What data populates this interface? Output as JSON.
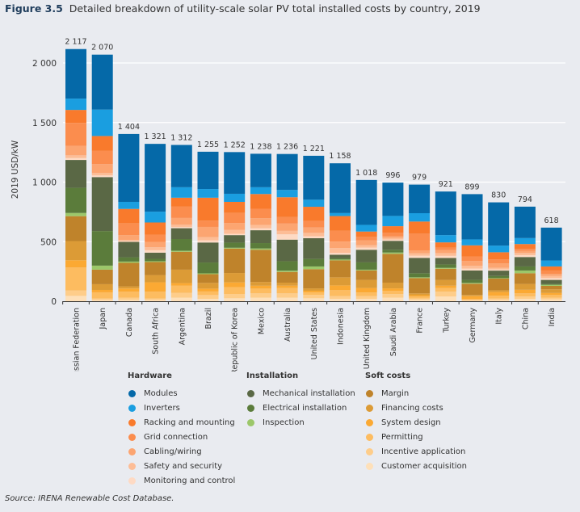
{
  "title": {
    "figure": "Figure 3.5",
    "text": "Detailed breakdown of utility-scale solar PV total installed costs by country, 2019"
  },
  "source": "Source: IRENA Renewable Cost Database.",
  "chart_data": {
    "type": "bar",
    "stacked": true,
    "title": "Detailed breakdown of utility-scale solar PV total installed costs by country, 2019",
    "ylabel": "2019 USD/kW",
    "xlabel": "",
    "ylim": [
      0,
      2200
    ],
    "yticks": [
      0,
      500,
      1000,
      1500,
      2000
    ],
    "ytick_labels": [
      "0",
      "500",
      "1 000",
      "1 500",
      "2 000"
    ],
    "grid": true,
    "legend_position": "bottom",
    "categories": [
      "Russian Federation",
      "Japan",
      "Canada",
      "South Africa",
      "Argentina",
      "Brazil",
      "Republic of Korea",
      "Mexico",
      "Australia",
      "United States",
      "Indonesia",
      "United Kingdom",
      "Saudi Arabia",
      "France",
      "Turkey",
      "Germany",
      "Italy",
      "China",
      "India"
    ],
    "totals": [
      2117,
      2070,
      1404,
      1321,
      1312,
      1255,
      1252,
      1238,
      1236,
      1221,
      1158,
      1018,
      996,
      979,
      921,
      899,
      830,
      794,
      618
    ],
    "total_labels": [
      "2 117",
      "2 070",
      "1 404",
      "1 321",
      "1 312",
      "1 255",
      "1 252",
      "1 238",
      "1 236",
      "1 221",
      "1 158",
      "1 018",
      "996",
      "979",
      "921",
      "899",
      "830",
      "794",
      "618"
    ],
    "groups": [
      {
        "name": "Hardware",
        "series": [
          {
            "name": "Modules",
            "color": "#0569a8",
            "values": [
              416,
              461,
              570,
              569,
              355,
              313,
              350,
              281,
              302,
              369,
              418,
              377,
              280,
              240,
              366,
              380,
              363,
              264,
              276
            ]
          },
          {
            "name": "Inverters",
            "color": "#1a9ee0",
            "values": [
              95,
              222,
              59,
              91,
              88,
              73,
              68,
              57,
              61,
              59,
              25,
              56,
              86,
              70,
              61,
              50,
              56,
              50,
              50
            ]
          },
          {
            "name": "Racking and mounting",
            "color": "#f97a2c",
            "values": [
              109,
              125,
              120,
              102,
              75,
              193,
              93,
              124,
              165,
              118,
              124,
              45,
              56,
              102,
              45,
              93,
              59,
              41,
              34
            ]
          },
          {
            "name": "Grid connection",
            "color": "#fb8d4e",
            "values": [
              193,
              111,
              100,
              61,
              95,
              52,
              84,
              79,
              56,
              56,
              90,
              30,
              29,
              140,
              20,
              39,
              34,
              17,
              29
            ]
          },
          {
            "name": "Cabling/wiring",
            "color": "#fca571",
            "values": [
              79,
              75,
              41,
              45,
              57,
              86,
              57,
              56,
              61,
              45,
              54,
              40,
              14,
              25,
              25,
              40,
              38,
              17,
              17
            ]
          },
          {
            "name": "Safety and security",
            "color": "#fdbd96",
            "values": [
              23,
              20,
              10,
              25,
              18,
              27,
              34,
              29,
              29,
              29,
              41,
              20,
              13,
              20,
              23,
              23,
              13,
              18,
              17
            ]
          },
          {
            "name": "Monitoring and control",
            "color": "#fedac4",
            "values": [
              16,
              14,
              6,
              20,
              11,
              18,
              11,
              16,
              45,
              16,
              16,
              18,
              11,
              18,
              18,
              16,
              10,
              16,
              16
            ]
          }
        ]
      },
      {
        "name": "Installation",
        "series": [
          {
            "name": "Mechanical installation",
            "color": "#5a6845",
            "values": [
              234,
              453,
              129,
              52,
              91,
              168,
              63,
              108,
              181,
              174,
              30,
              106,
              75,
              129,
              54,
              79,
              45,
              79,
              34
            ]
          },
          {
            "name": "Electrical installation",
            "color": "#5b7c3b",
            "values": [
              211,
              290,
              36,
              20,
              98,
              91,
              43,
              45,
              79,
              63,
              10,
              61,
              23,
              34,
              29,
              25,
              18,
              34,
              7
            ]
          },
          {
            "name": "Inspection",
            "color": "#9cc76a",
            "values": [
              27,
              34,
              11,
              7,
              9,
              7,
              7,
              11,
              11,
              23,
              7,
              7,
              11,
              7,
              7,
              7,
              4,
              23,
              9
            ]
          }
        ]
      },
      {
        "name": "Soft costs",
        "series": [
          {
            "name": "Margin",
            "color": "#bf832b",
            "values": [
              209,
              122,
              197,
              109,
              150,
              73,
              205,
              270,
              90,
              161,
              142,
              79,
              242,
              128,
              94,
              94,
              98,
              90,
              29
            ]
          },
          {
            "name": "Financing costs",
            "color": "#dc9b36",
            "values": [
              161,
              48,
              18,
              61,
              113,
              48,
              79,
              32,
              25,
              20,
              68,
              68,
              48,
              15,
              48,
              10,
              15,
              49,
              31
            ]
          },
          {
            "name": "System design",
            "color": "#fba933",
            "values": [
              61,
              20,
              27,
              79,
              22,
              24,
              40,
              24,
              20,
              14,
              40,
              38,
              20,
              12,
              20,
              23,
              30,
              30,
              15
            ]
          },
          {
            "name": "Permitting",
            "color": "#fdbc60",
            "values": [
              193,
              52,
              50,
              57,
              60,
              30,
              57,
              40,
              45,
              20,
              50,
              30,
              28,
              15,
              31,
              10,
              25,
              26,
              24
            ]
          },
          {
            "name": "Incentive application",
            "color": "#fecd8a",
            "values": [
              45,
              13,
              19,
              13,
              40,
              32,
              36,
              36,
              36,
              29,
              23,
              23,
              30,
              12,
              40,
              5,
              12,
              20,
              15
            ]
          },
          {
            "name": "Customer acquisition",
            "color": "#fee0b9",
            "values": [
              45,
              10,
              11,
              10,
              30,
              20,
              25,
              30,
              30,
              25,
              20,
              20,
              30,
              12,
              40,
              5,
              10,
              20,
              15
            ]
          }
        ]
      }
    ]
  }
}
